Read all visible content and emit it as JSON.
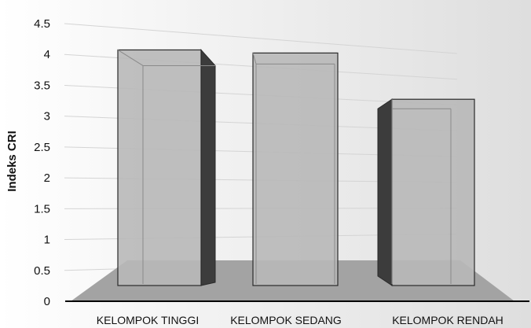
{
  "chart_data": {
    "type": "bar",
    "style": "3d-column",
    "categories": [
      "KELOMPOK TINGGI",
      "KELOMPOK SEDANG",
      "KELOMPOK RENDAH"
    ],
    "values": [
      4.15,
      4.1,
      3.35
    ],
    "xlabel": "",
    "ylabel": "Indeks CRI",
    "ylim": [
      0,
      4.5
    ],
    "yticks": [
      "0",
      "0.5",
      "1",
      "1.5",
      "2",
      "2.5",
      "3",
      "3.5",
      "4",
      "4.5"
    ],
    "grid": true,
    "legend": "none"
  },
  "colors": {
    "background_left": "#ffffff",
    "background_right": "#dedede",
    "floor": "#a3a3a3",
    "bar_front": "#b8b8b8",
    "bar_side_dark": "#3c3c3c",
    "bar_edge": "#2a2a2a",
    "axis": "#000000"
  }
}
